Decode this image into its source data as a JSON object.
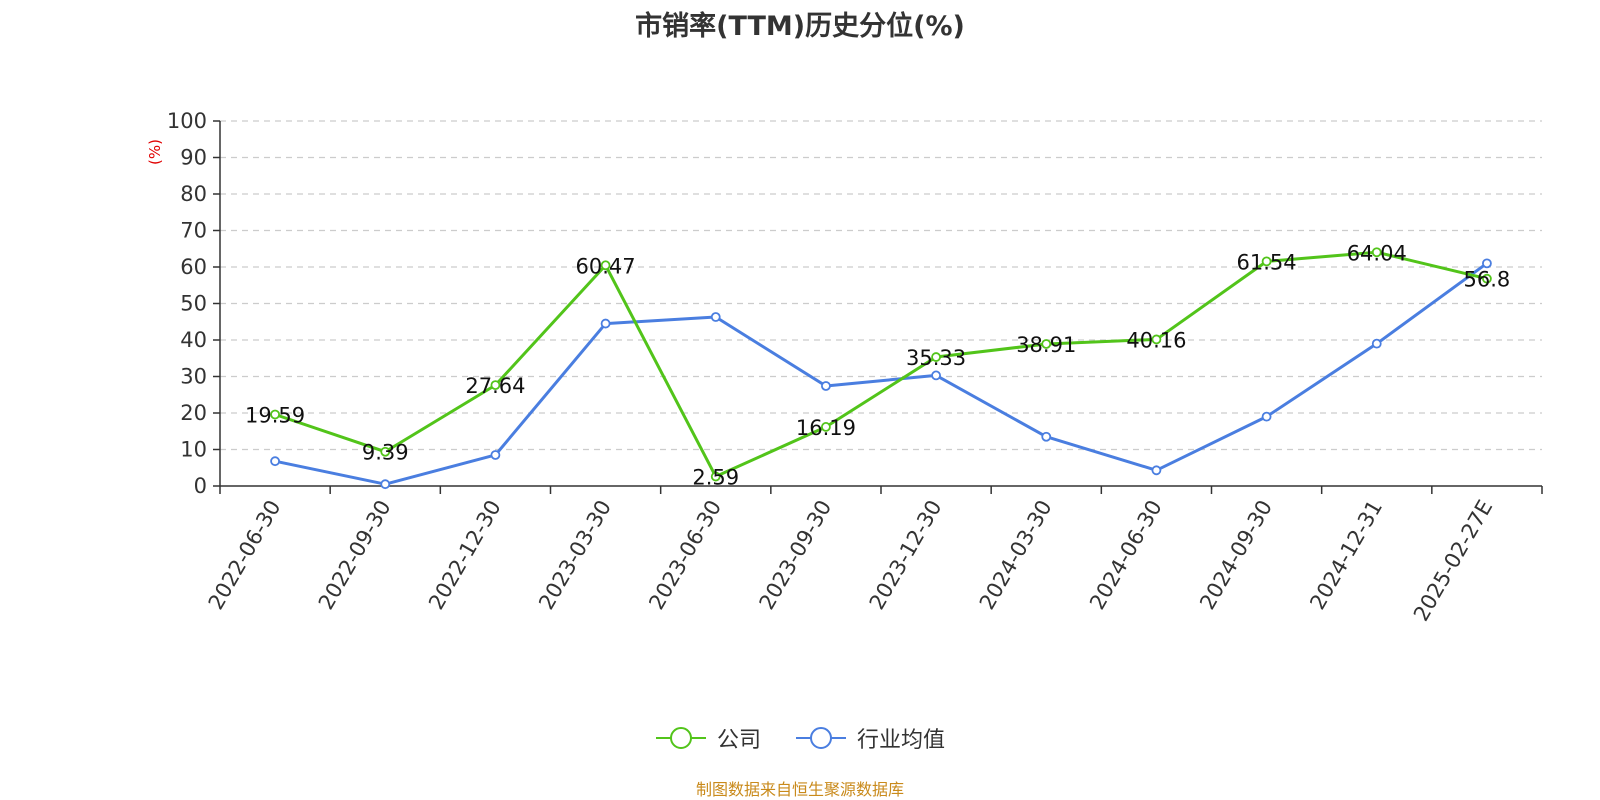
{
  "title": "市销率(TTM)历史分位(%)",
  "source": "制图数据来自恒生聚源数据库",
  "chart_data": {
    "type": "line",
    "title": "市销率(TTM)历史分位(%)",
    "ylabel": "(%)",
    "xlabel": "",
    "ylim": [
      0,
      100
    ],
    "yticks": [
      0,
      10,
      20,
      30,
      40,
      50,
      60,
      70,
      80,
      90,
      100
    ],
    "grid": true,
    "legend_position": "bottom-center",
    "categories": [
      "2022-06-30",
      "2022-09-30",
      "2022-12-30",
      "2023-03-30",
      "2023-06-30",
      "2023-09-30",
      "2023-12-30",
      "2024-03-30",
      "2024-06-30",
      "2024-09-30",
      "2024-12-31",
      "2025-02-27E"
    ],
    "series": [
      {
        "name": "公司",
        "color": "#52c41a",
        "show_labels": true,
        "values": [
          19.59,
          9.39,
          27.64,
          60.47,
          2.59,
          16.19,
          35.33,
          38.91,
          40.16,
          61.54,
          64.04,
          56.8
        ]
      },
      {
        "name": "行业均值",
        "color": "#4a7ee0",
        "show_labels": false,
        "values": [
          6.8,
          0.5,
          8.5,
          44.5,
          46.3,
          27.4,
          30.3,
          13.5,
          4.3,
          19.0,
          39.0,
          61.0
        ]
      }
    ]
  }
}
